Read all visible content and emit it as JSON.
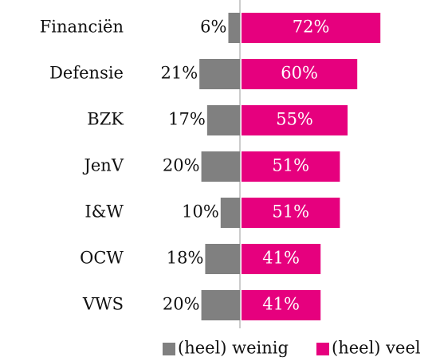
{
  "chart_data": {
    "type": "diverging_bar",
    "categories": [
      "Financiën",
      "Defensie",
      "BZK",
      "JenV",
      "I&W",
      "OCW",
      "VWS"
    ],
    "series": [
      {
        "name": "(heel) weinig",
        "color": "#808080",
        "values": [
          6,
          21,
          17,
          20,
          10,
          18,
          20
        ],
        "value_labels": [
          "6%",
          "21%",
          "17%",
          "20%",
          "10%",
          "18%",
          "20%"
        ]
      },
      {
        "name": "(heel) veel",
        "color": "#e6007e",
        "values": [
          72,
          60,
          55,
          51,
          51,
          41,
          41
        ],
        "value_labels": [
          "72%",
          "60%",
          "55%",
          "51%",
          "51%",
          "41%",
          "41%"
        ]
      }
    ]
  }
}
